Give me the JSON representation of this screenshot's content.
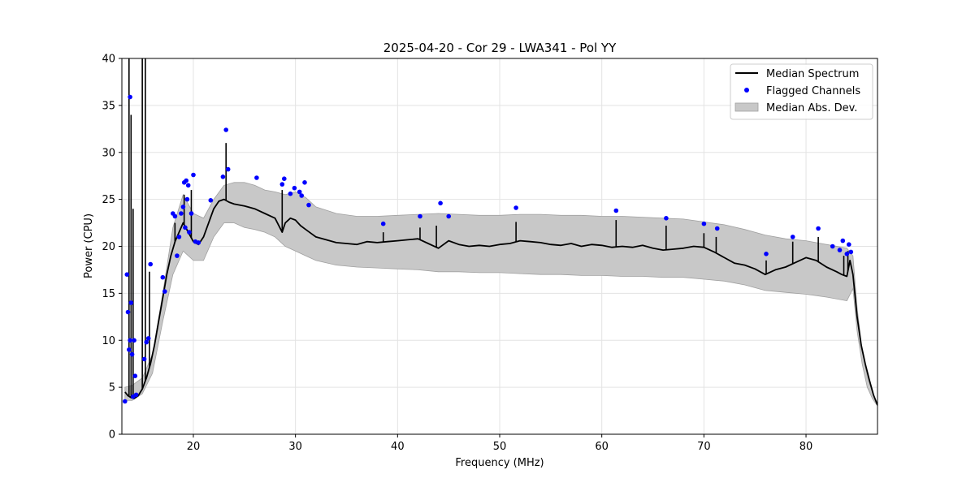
{
  "chart_data": {
    "type": "line",
    "title": "2025-04-20 - Cor 29 - LWA341 - Pol YY",
    "xlabel": "Frequency (MHz)",
    "ylabel": "Power (CPU)",
    "xlim": [
      13,
      87
    ],
    "ylim": [
      0,
      40
    ],
    "xticks": [
      20,
      30,
      40,
      50,
      60,
      70,
      80
    ],
    "yticks": [
      0,
      5,
      10,
      15,
      20,
      25,
      30,
      35,
      40
    ],
    "grid": true,
    "legend_position": "top-right",
    "colors": {
      "median": "#000000",
      "flagged": "#0000ff",
      "mad_fill": "#c8c8c8",
      "mad_edge": "#a0a0a0"
    },
    "series": [
      {
        "name": "Median Spectrum",
        "kind": "line",
        "x": [
          13.3,
          13.6,
          13.9,
          14.2,
          14.6,
          15.0,
          15.4,
          15.8,
          16.2,
          16.6,
          17.0,
          17.4,
          17.8,
          18.2,
          18.6,
          19.0,
          19.5,
          20.0,
          20.5,
          21.0,
          21.5,
          22.0,
          22.5,
          23.0,
          23.5,
          24.0,
          25.0,
          26.0,
          27.0,
          28.0,
          28.7,
          29.0,
          29.5,
          30.0,
          30.5,
          31.0,
          31.5,
          32.0,
          33.0,
          34.0,
          35.0,
          36.0,
          37.0,
          38.0,
          39.0,
          40.0,
          41.0,
          42.0,
          43.0,
          44.0,
          45.0,
          46.0,
          47.0,
          48.0,
          49.0,
          50.0,
          51.0,
          52.0,
          53.0,
          54.0,
          55.0,
          56.0,
          57.0,
          58.0,
          59.0,
          60.0,
          61.0,
          62.0,
          63.0,
          64.0,
          65.0,
          66.0,
          67.0,
          68.0,
          69.0,
          70.0,
          71.0,
          72.0,
          73.0,
          74.0,
          75.0,
          76.0,
          77.0,
          78.0,
          79.0,
          80.0,
          81.0,
          82.0,
          83.0,
          83.5,
          84.0,
          84.3,
          84.6,
          85.0,
          85.4,
          85.8,
          86.2,
          86.6,
          87.0
        ],
        "y": [
          4.5,
          4.1,
          3.9,
          3.8,
          4.1,
          4.8,
          6.0,
          7.5,
          9.5,
          12.0,
          14.5,
          17.0,
          19.0,
          20.5,
          21.5,
          22.5,
          21.5,
          20.5,
          20.2,
          21.0,
          22.5,
          24.0,
          24.8,
          25.0,
          24.7,
          24.5,
          24.3,
          24.0,
          23.5,
          23.0,
          21.5,
          22.5,
          23.0,
          22.8,
          22.2,
          21.8,
          21.4,
          21.0,
          20.7,
          20.4,
          20.3,
          20.2,
          20.5,
          20.4,
          20.5,
          20.6,
          20.7,
          20.8,
          20.3,
          19.8,
          20.6,
          20.2,
          20.0,
          20.1,
          20.0,
          20.2,
          20.3,
          20.6,
          20.5,
          20.4,
          20.2,
          20.1,
          20.3,
          20.0,
          20.2,
          20.1,
          19.9,
          20.0,
          19.9,
          20.1,
          19.8,
          19.6,
          19.7,
          19.8,
          20.0,
          19.9,
          19.4,
          18.8,
          18.2,
          18.0,
          17.6,
          17.0,
          17.5,
          17.8,
          18.3,
          18.8,
          18.5,
          17.8,
          17.3,
          17.0,
          16.8,
          18.5,
          17.0,
          12.5,
          9.5,
          7.5,
          5.8,
          4.2,
          3.1
        ],
        "spikes": [
          {
            "x": 13.7,
            "y": 40
          },
          {
            "x": 13.9,
            "y": 34
          },
          {
            "x": 14.1,
            "y": 24
          },
          {
            "x": 15.0,
            "y": 40
          },
          {
            "x": 15.3,
            "y": 40
          },
          {
            "x": 15.7,
            "y": 17.3
          },
          {
            "x": 18.2,
            "y": 22.5
          },
          {
            "x": 19.1,
            "y": 25.5
          },
          {
            "x": 19.8,
            "y": 26.0
          },
          {
            "x": 23.2,
            "y": 31.0
          },
          {
            "x": 28.7,
            "y": 26.0
          },
          {
            "x": 38.6,
            "y": 21.5
          },
          {
            "x": 42.2,
            "y": 22.0
          },
          {
            "x": 43.8,
            "y": 22.2
          },
          {
            "x": 51.6,
            "y": 22.6
          },
          {
            "x": 61.4,
            "y": 22.8
          },
          {
            "x": 66.3,
            "y": 22.2
          },
          {
            "x": 70.0,
            "y": 21.4
          },
          {
            "x": 71.2,
            "y": 21.0
          },
          {
            "x": 76.1,
            "y": 18.5
          },
          {
            "x": 78.7,
            "y": 20.5
          },
          {
            "x": 81.2,
            "y": 21.0
          },
          {
            "x": 83.7,
            "y": 19.0
          },
          {
            "x": 84.1,
            "y": 19.5
          }
        ]
      },
      {
        "name": "Flagged Channels",
        "kind": "scatter",
        "x": [
          13.3,
          13.5,
          13.6,
          13.7,
          13.8,
          13.8,
          13.9,
          14.0,
          14.1,
          14.2,
          14.3,
          14.4,
          15.2,
          15.4,
          15.6,
          15.8,
          17.0,
          17.2,
          18.0,
          18.2,
          18.4,
          18.6,
          18.8,
          19.0,
          19.1,
          19.2,
          19.3,
          19.4,
          19.5,
          19.6,
          19.8,
          20.0,
          20.2,
          20.5,
          21.7,
          22.9,
          23.2,
          23.4,
          26.2,
          28.7,
          28.9,
          29.5,
          29.9,
          30.4,
          30.6,
          30.9,
          31.3,
          38.6,
          42.2,
          44.2,
          45.0,
          51.6,
          61.4,
          66.3,
          70.0,
          71.3,
          76.1,
          78.7,
          81.2,
          82.6,
          83.3,
          83.6,
          84.0,
          84.2,
          84.4
        ],
        "y": [
          3.5,
          17.0,
          13.0,
          9.0,
          10.0,
          35.9,
          14.0,
          8.5,
          4.0,
          10.0,
          6.2,
          4.2,
          8.0,
          9.8,
          10.2,
          18.1,
          16.7,
          15.2,
          23.5,
          23.2,
          19.0,
          21.0,
          23.5,
          24.2,
          26.8,
          22.0,
          27.0,
          25.0,
          26.5,
          21.5,
          23.5,
          27.6,
          20.5,
          20.4,
          24.9,
          27.4,
          32.4,
          28.2,
          27.3,
          26.6,
          27.2,
          25.6,
          26.2,
          25.8,
          25.4,
          26.8,
          24.4,
          22.4,
          23.2,
          24.6,
          23.2,
          24.1,
          23.8,
          23.0,
          22.4,
          21.9,
          19.2,
          21.0,
          21.9,
          20.0,
          19.6,
          20.6,
          19.2,
          20.2,
          19.4
        ]
      },
      {
        "name": "Median Abs. Dev.",
        "kind": "band",
        "x": [
          13.3,
          14.0,
          15.0,
          16.0,
          17.0,
          18.0,
          19.0,
          20.0,
          21.0,
          22.0,
          23.0,
          24.0,
          25.0,
          26.0,
          27.0,
          28.0,
          29.0,
          30.0,
          31.0,
          32.0,
          34.0,
          36.0,
          38.0,
          40.0,
          42.0,
          44.0,
          46.0,
          48.0,
          50.0,
          52.0,
          54.0,
          56.0,
          58.0,
          60.0,
          62.0,
          64.0,
          66.0,
          68.0,
          70.0,
          72.0,
          74.0,
          76.0,
          78.0,
          80.0,
          82.0,
          84.0,
          84.6,
          85.0,
          85.5,
          86.0,
          86.5,
          87.0
        ],
        "lower": [
          3.6,
          3.6,
          4.3,
          6.5,
          12.0,
          17.0,
          19.5,
          18.5,
          18.5,
          21.0,
          22.5,
          22.5,
          22.0,
          21.8,
          21.5,
          21.0,
          20.0,
          19.5,
          19.0,
          18.5,
          18.0,
          17.8,
          17.7,
          17.6,
          17.5,
          17.3,
          17.3,
          17.2,
          17.2,
          17.1,
          17.0,
          17.0,
          16.9,
          16.9,
          16.8,
          16.8,
          16.7,
          16.7,
          16.5,
          16.3,
          15.9,
          15.3,
          15.1,
          14.9,
          14.6,
          14.2,
          15.5,
          11.0,
          7.5,
          5.0,
          3.8,
          3.0
        ],
        "upper": [
          5.0,
          5.2,
          6.0,
          8.5,
          15.0,
          22.0,
          25.5,
          23.5,
          23.0,
          25.0,
          26.5,
          26.8,
          26.8,
          26.5,
          26.0,
          25.8,
          25.5,
          25.8,
          25.2,
          24.2,
          23.5,
          23.2,
          23.2,
          23.3,
          23.4,
          23.5,
          23.4,
          23.3,
          23.3,
          23.4,
          23.4,
          23.3,
          23.3,
          23.2,
          23.2,
          23.1,
          23.0,
          22.9,
          22.6,
          22.3,
          21.8,
          21.2,
          20.8,
          20.6,
          20.2,
          19.8,
          19.0,
          13.5,
          9.0,
          6.2,
          4.5,
          3.2
        ]
      }
    ]
  }
}
